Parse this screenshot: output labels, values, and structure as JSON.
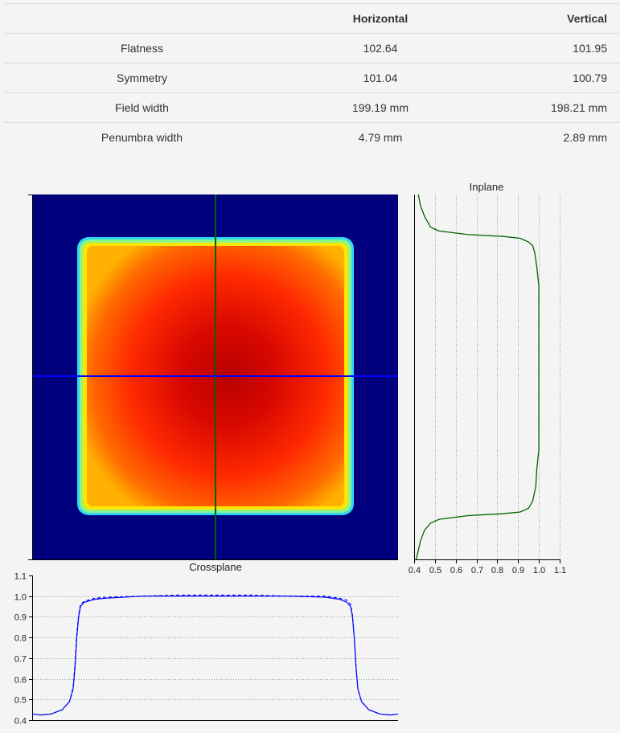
{
  "table": {
    "headers": [
      "",
      "Horizontal",
      "Vertical"
    ],
    "rows": [
      {
        "label": "Flatness",
        "horizontal": "102.64",
        "vertical": "101.95"
      },
      {
        "label": "Symmetry",
        "horizontal": "101.04",
        "vertical": "100.79"
      },
      {
        "label": "Field width",
        "horizontal": "199.19 mm",
        "vertical": "198.21 mm"
      },
      {
        "label": "Penumbra width",
        "horizontal": "4.79 mm",
        "vertical": "2.89 mm"
      }
    ]
  },
  "colors": {
    "background": "#00007f",
    "inplane_line": "#006400",
    "crossplane_line": "#0000ff"
  },
  "chart_data": [
    {
      "type": "heatmap",
      "title": "",
      "colormap": "jet",
      "field": {
        "x_range": [
          0.125,
          0.875
        ],
        "y_range": [
          0.12,
          0.875
        ]
      },
      "crosshair": {
        "x": 0.5,
        "y": 0.5
      }
    },
    {
      "type": "line",
      "title": "Inplane",
      "orientation": "vertical",
      "xlim": [
        0.4,
        1.1
      ],
      "xticks": [
        0.4,
        0.5,
        0.6,
        0.7,
        0.8,
        0.9,
        1.0,
        1.1
      ],
      "xtick_labels": [
        "0.4",
        "0.5",
        "0.6",
        "0.7",
        "0.8",
        "0.9",
        "1.0",
        "1.1"
      ],
      "grid": true,
      "series": [
        {
          "style": "solid",
          "position": [
            0,
            0.03,
            0.06,
            0.09,
            0.1,
            0.11,
            0.115,
            0.12,
            0.13,
            0.14,
            0.16,
            0.2,
            0.25,
            0.3,
            0.35,
            0.4,
            0.45,
            0.5,
            0.55,
            0.6,
            0.65,
            0.7,
            0.75,
            0.8,
            0.84,
            0.86,
            0.87,
            0.875,
            0.88,
            0.89,
            0.9,
            0.92,
            0.95,
            1.0
          ],
          "values": [
            0.42,
            0.43,
            0.45,
            0.48,
            0.52,
            0.66,
            0.83,
            0.91,
            0.95,
            0.97,
            0.98,
            0.99,
            1.0,
            1.0,
            1.0,
            1.0,
            1.0,
            1.0,
            1.0,
            1.0,
            1.0,
            1.0,
            0.99,
            0.985,
            0.97,
            0.95,
            0.91,
            0.82,
            0.66,
            0.52,
            0.48,
            0.45,
            0.43,
            0.41
          ]
        }
      ]
    },
    {
      "type": "line",
      "title": "Crossplane",
      "ylim": [
        0.4,
        1.1
      ],
      "yticks": [
        0.4,
        0.5,
        0.6,
        0.7,
        0.8,
        0.9,
        1.0,
        1.1
      ],
      "ytick_labels": [
        "0.4",
        "0.5",
        "0.6",
        "0.7",
        "0.8",
        "0.9",
        "1.0",
        "1.1"
      ],
      "grid": true,
      "series": [
        {
          "style": "solid",
          "position": [
            0,
            0.02,
            0.05,
            0.08,
            0.1,
            0.11,
            0.115,
            0.12,
            0.125,
            0.13,
            0.14,
            0.17,
            0.2,
            0.3,
            0.4,
            0.5,
            0.6,
            0.7,
            0.8,
            0.84,
            0.86,
            0.87,
            0.875,
            0.88,
            0.885,
            0.89,
            0.9,
            0.92,
            0.95,
            0.98,
            1.0
          ],
          "values": [
            0.43,
            0.425,
            0.43,
            0.45,
            0.49,
            0.55,
            0.65,
            0.8,
            0.9,
            0.95,
            0.97,
            0.985,
            0.99,
            1.0,
            1.0,
            1.0,
            1.0,
            1.0,
            0.995,
            0.985,
            0.97,
            0.95,
            0.9,
            0.8,
            0.65,
            0.55,
            0.49,
            0.45,
            0.43,
            0.425,
            0.43
          ]
        },
        {
          "style": "dashed",
          "position": [
            0,
            0.02,
            0.05,
            0.08,
            0.1,
            0.11,
            0.115,
            0.12,
            0.125,
            0.13,
            0.14,
            0.17,
            0.2,
            0.3,
            0.4,
            0.5,
            0.6,
            0.7,
            0.8,
            0.84,
            0.86,
            0.87,
            0.875,
            0.88,
            0.885,
            0.89,
            0.9,
            0.92,
            0.95,
            0.98,
            1.0
          ],
          "values": [
            0.43,
            0.425,
            0.43,
            0.45,
            0.49,
            0.56,
            0.67,
            0.82,
            0.91,
            0.96,
            0.975,
            0.99,
            0.995,
            1.0,
            1.005,
            1.005,
            1.005,
            1.0,
            1.0,
            0.99,
            0.98,
            0.96,
            0.91,
            0.81,
            0.66,
            0.55,
            0.49,
            0.45,
            0.43,
            0.425,
            0.43
          ]
        }
      ]
    }
  ]
}
